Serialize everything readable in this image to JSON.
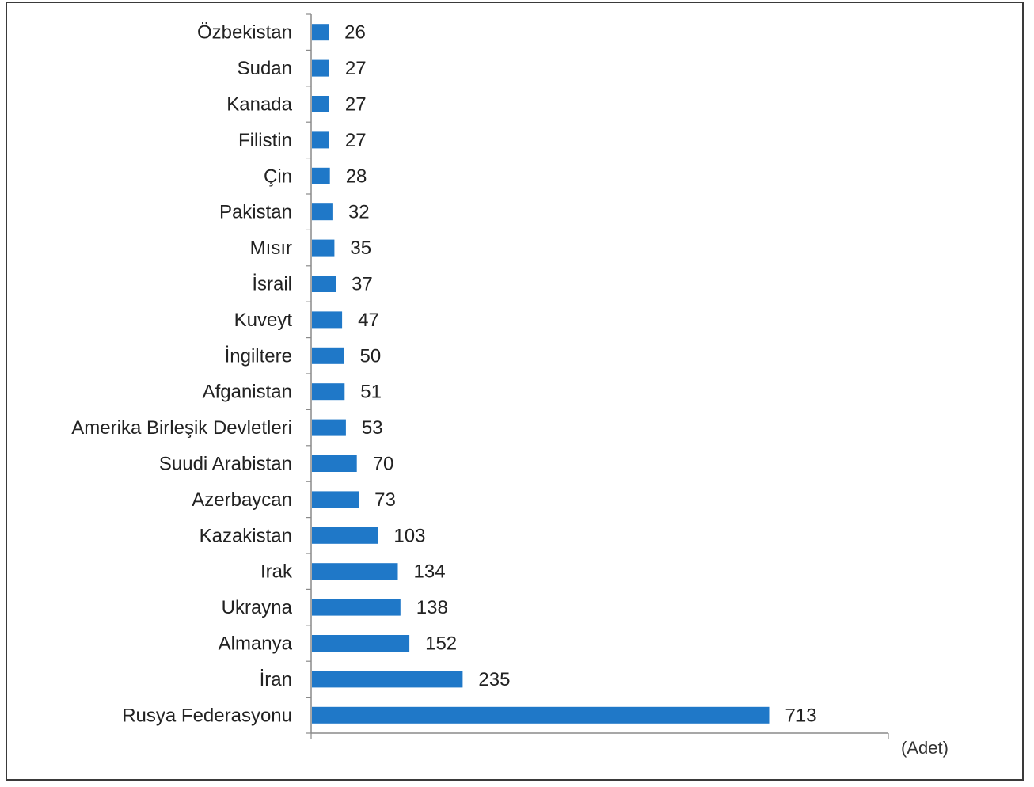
{
  "chart_data": {
    "type": "bar",
    "orientation": "horizontal",
    "categories": [
      "Özbekistan",
      "Sudan",
      "Kanada",
      "Filistin",
      "Çin",
      "Pakistan",
      "Mısır",
      "İsrail",
      "Kuveyt",
      "İngiltere",
      "Afganistan",
      "Amerika Birleşik Devletleri",
      "Suudi Arabistan",
      "Azerbaycan",
      "Kazakistan",
      "Irak",
      "Ukrayna",
      "Almanya",
      "İran",
      "Rusya Federasyonu"
    ],
    "values": [
      26,
      27,
      27,
      27,
      28,
      32,
      35,
      37,
      47,
      50,
      51,
      53,
      70,
      73,
      103,
      134,
      138,
      152,
      235,
      713
    ],
    "unit_label": "(Adet)",
    "bar_color": "#1f78c8",
    "xlim": [
      0,
      900
    ],
    "grid": false,
    "legend": "none"
  }
}
